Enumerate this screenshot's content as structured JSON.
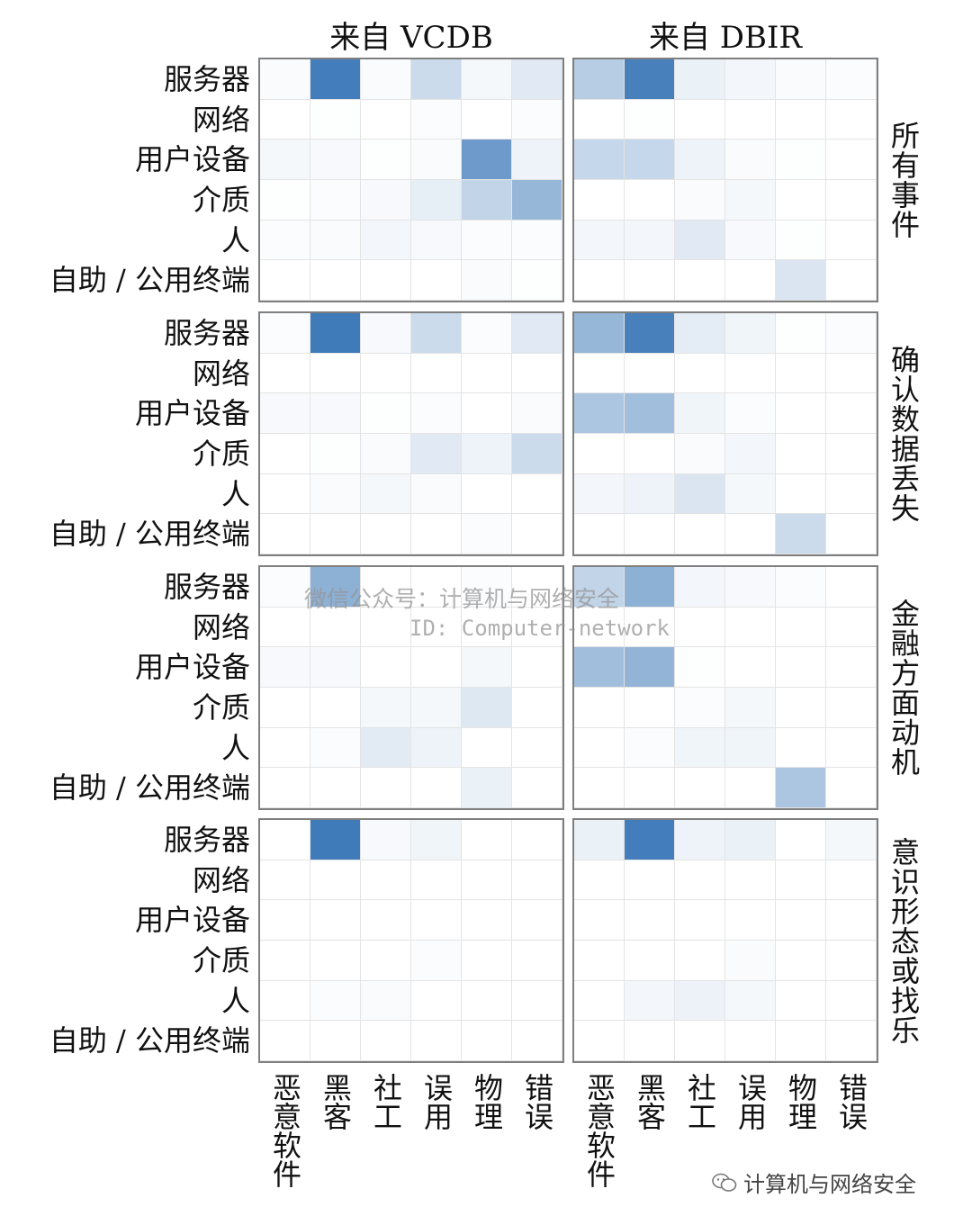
{
  "chart_data": {
    "type": "heatmap",
    "color": "#2f6fb3",
    "columns": [
      "来自 VCDB",
      "来自 DBIR"
    ],
    "facets": [
      "所有事件",
      "确认数据丢失",
      "金融方面动机",
      "意识形态或找乐"
    ],
    "rows": [
      "服务器",
      "网络",
      "用户设备",
      "介质",
      "人",
      "自助 / 公用终端"
    ],
    "categories": [
      "恶意软件",
      "黑客",
      "社工",
      "误用",
      "物理",
      "错误"
    ],
    "panels": [
      {
        "facet": "所有事件",
        "column": "来自 VCDB",
        "values": [
          [
            0.03,
            0.9,
            0.03,
            0.25,
            0.05,
            0.15
          ],
          [
            0.0,
            0.01,
            0.0,
            0.02,
            0.0,
            0.02
          ],
          [
            0.05,
            0.04,
            0.01,
            0.03,
            0.7,
            0.08
          ],
          [
            0.01,
            0.02,
            0.04,
            0.12,
            0.3,
            0.5
          ],
          [
            0.02,
            0.03,
            0.06,
            0.04,
            0.02,
            0.02
          ],
          [
            0.0,
            0.0,
            0.0,
            0.0,
            0.03,
            0.01
          ]
        ]
      },
      {
        "facet": "所有事件",
        "column": "来自 DBIR",
        "values": [
          [
            0.35,
            0.88,
            0.1,
            0.06,
            0.03,
            0.02
          ],
          [
            0.0,
            0.01,
            0.0,
            0.0,
            0.0,
            0.0
          ],
          [
            0.28,
            0.28,
            0.08,
            0.03,
            0.01,
            0.0
          ],
          [
            0.0,
            0.0,
            0.03,
            0.05,
            0.0,
            0.0
          ],
          [
            0.06,
            0.06,
            0.15,
            0.04,
            0.01,
            0.0
          ],
          [
            0.0,
            0.0,
            0.0,
            0.0,
            0.18,
            0.0
          ]
        ]
      },
      {
        "facet": "确认数据丢失",
        "column": "来自 VCDB",
        "values": [
          [
            0.02,
            0.92,
            0.04,
            0.25,
            0.02,
            0.15
          ],
          [
            0.0,
            0.0,
            0.0,
            0.0,
            0.0,
            0.0
          ],
          [
            0.04,
            0.04,
            0.01,
            0.02,
            0.0,
            0.03
          ],
          [
            0.0,
            0.01,
            0.03,
            0.15,
            0.08,
            0.25
          ],
          [
            0.0,
            0.03,
            0.05,
            0.03,
            0.0,
            0.0
          ],
          [
            0.0,
            0.0,
            0.0,
            0.0,
            0.02,
            0.0
          ]
        ]
      },
      {
        "facet": "确认数据丢失",
        "column": "来自 DBIR",
        "values": [
          [
            0.5,
            0.88,
            0.13,
            0.07,
            0.01,
            0.02
          ],
          [
            0.0,
            0.0,
            0.0,
            0.0,
            0.0,
            0.0
          ],
          [
            0.4,
            0.45,
            0.07,
            0.02,
            0.0,
            0.0
          ],
          [
            0.0,
            0.0,
            0.03,
            0.06,
            0.0,
            0.0
          ],
          [
            0.06,
            0.08,
            0.18,
            0.05,
            0.0,
            0.0
          ],
          [
            0.0,
            0.0,
            0.0,
            0.0,
            0.25,
            0.0
          ]
        ]
      },
      {
        "facet": "金融方面动机",
        "column": "来自 VCDB",
        "values": [
          [
            0.02,
            0.55,
            0.0,
            0.0,
            0.02,
            0.0
          ],
          [
            0.0,
            0.0,
            0.0,
            0.0,
            0.0,
            0.0
          ],
          [
            0.04,
            0.04,
            0.0,
            0.0,
            0.05,
            0.0
          ],
          [
            0.0,
            0.0,
            0.05,
            0.05,
            0.16,
            0.0
          ],
          [
            0.0,
            0.02,
            0.14,
            0.08,
            0.0,
            0.0
          ],
          [
            0.0,
            0.0,
            0.0,
            0.0,
            0.1,
            0.0
          ]
        ]
      },
      {
        "facet": "金融方面动机",
        "column": "来自 DBIR",
        "values": [
          [
            0.3,
            0.55,
            0.06,
            0.04,
            0.02,
            0.0
          ],
          [
            0.0,
            0.0,
            0.0,
            0.0,
            0.0,
            0.0
          ],
          [
            0.45,
            0.52,
            0.01,
            0.0,
            0.0,
            0.0
          ],
          [
            0.0,
            0.0,
            0.02,
            0.05,
            0.0,
            0.0
          ],
          [
            0.0,
            0.02,
            0.07,
            0.07,
            0.0,
            0.0
          ],
          [
            0.0,
            0.0,
            0.0,
            0.0,
            0.4,
            0.0
          ]
        ]
      },
      {
        "facet": "意识形态或找乐",
        "column": "来自 VCDB",
        "values": [
          [
            0.0,
            0.92,
            0.04,
            0.07,
            0.0,
            0.0
          ],
          [
            0.0,
            0.0,
            0.0,
            0.0,
            0.0,
            0.0
          ],
          [
            0.0,
            0.0,
            0.0,
            0.0,
            0.0,
            0.0
          ],
          [
            0.0,
            0.0,
            0.0,
            0.02,
            0.0,
            0.0
          ],
          [
            0.0,
            0.02,
            0.03,
            0.0,
            0.0,
            0.0
          ],
          [
            0.0,
            0.0,
            0.0,
            0.0,
            0.0,
            0.0
          ]
        ]
      },
      {
        "facet": "意识形态或找乐",
        "column": "来自 DBIR",
        "values": [
          [
            0.1,
            0.9,
            0.08,
            0.1,
            0.0,
            0.05
          ],
          [
            0.0,
            0.0,
            0.0,
            0.0,
            0.0,
            0.0
          ],
          [
            0.0,
            0.0,
            0.0,
            0.0,
            0.0,
            0.0
          ],
          [
            0.0,
            0.0,
            0.0,
            0.03,
            0.0,
            0.0
          ],
          [
            0.0,
            0.06,
            0.09,
            0.05,
            0.0,
            0.0
          ],
          [
            0.0,
            0.0,
            0.0,
            0.0,
            0.0,
            0.0
          ]
        ]
      }
    ]
  },
  "watermark": {
    "line1": "微信公众号：计算机与网络安全",
    "line2": "ID: Computer-network"
  },
  "source_badge": {
    "icon": "wechat-icon",
    "text": "计算机与网络安全"
  }
}
